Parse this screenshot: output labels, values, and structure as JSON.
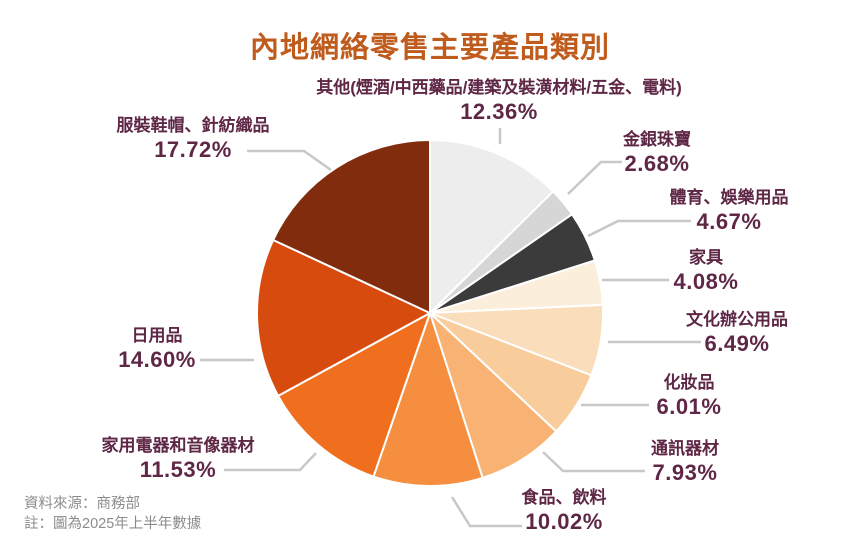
{
  "title": "內地網絡零售主要產品類別",
  "footer": {
    "source": "資料來源：商務部",
    "note": "註：圖為2025年上半年數據"
  },
  "colors": {
    "title": "#BF5B1D",
    "label_text": "#5F2746",
    "leader_line": "#C9C8C8",
    "slice_separator": "#FFFFFF",
    "background": "#FFFFFF",
    "footer_text": "#8C8C8C"
  },
  "chart_data": {
    "type": "pie",
    "title": "內地網絡零售主要產品類別",
    "start_angle": "12 o'clock",
    "direction": "clockwise",
    "legend_position": "outside-callout-labels",
    "unit": "%",
    "categories": [
      "其他(煙酒/中西藥品/建築及裝潢材料/五金、電料)",
      "金銀珠寶",
      "體育、娛樂用品",
      "家具",
      "文化辦公用品",
      "化妝品",
      "通訊器材",
      "食品、飲料",
      "家用電器和音像器材",
      "日用品",
      "服裝鞋帽、針紡織品"
    ],
    "values": [
      12.36,
      2.68,
      4.67,
      4.08,
      6.49,
      6.01,
      7.93,
      10.02,
      11.53,
      14.6,
      17.72
    ],
    "value_labels": [
      "12.36%",
      "2.68%",
      "4.67%",
      "4.08%",
      "6.49%",
      "6.01%",
      "7.93%",
      "10.02%",
      "11.53%",
      "14.60%",
      "17.72%"
    ],
    "slice_colors": [
      "#EEEDED",
      "#D7D6D6",
      "#3C3B3B",
      "#FBEEDB",
      "#FADEBB",
      "#F8CD9B",
      "#F8B274",
      "#F68E40",
      "#EF6F1E",
      "#D84B0E",
      "#812C0D"
    ]
  }
}
